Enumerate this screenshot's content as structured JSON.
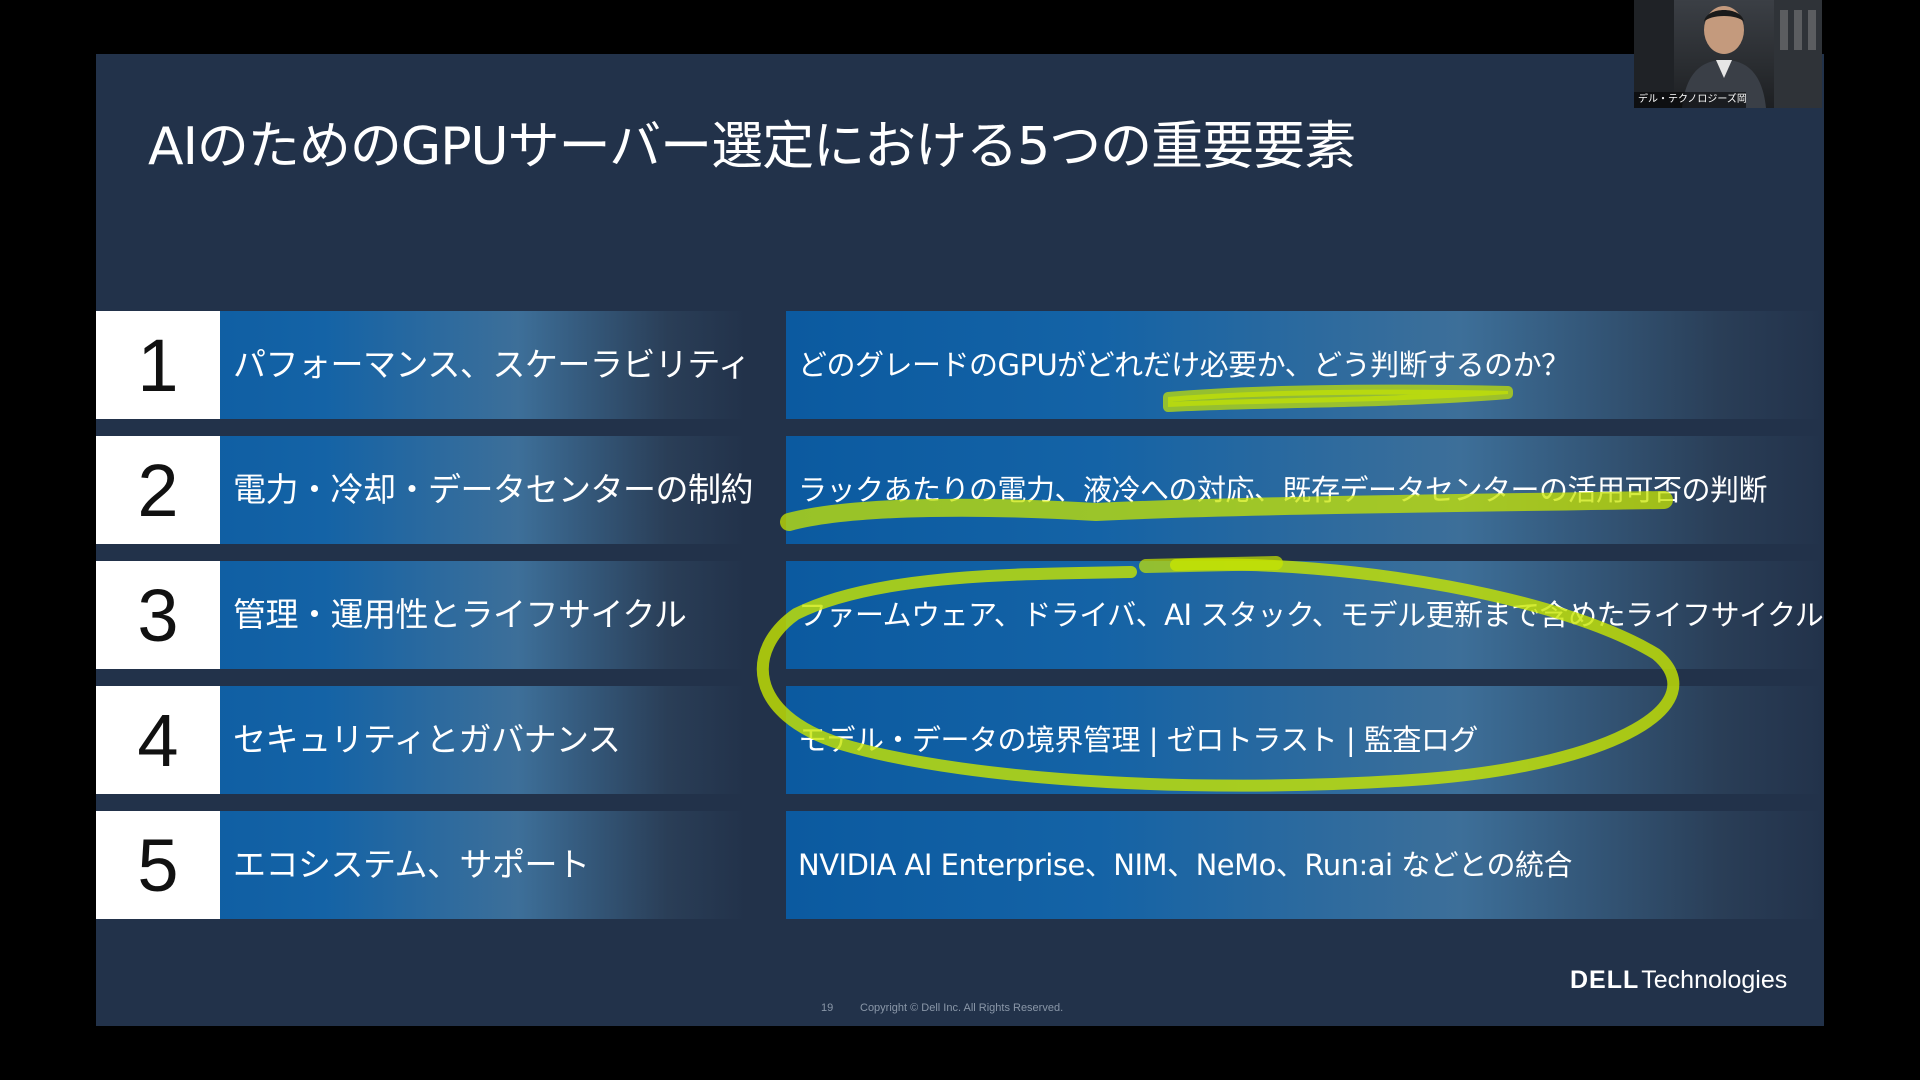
{
  "slide": {
    "title": "AIのためのGPUサーバー選定における5つの重要要素",
    "rows": [
      {
        "number": "1",
        "label": "パフォーマンス、スケーラビリティ",
        "description": "どのグレードのGPUがどれだけ必要か、どう判断するのか？"
      },
      {
        "number": "2",
        "label": "電力・冷却・データセンターの制約",
        "description": "ラックあたりの電力、液冷への対応、既存データセンターの活用可否の判断"
      },
      {
        "number": "3",
        "label": "管理・運用性とライフサイクル",
        "description": "ファームウェア、ドライバ、AI スタック、モデル更新まで含めたライフサイクル"
      },
      {
        "number": "4",
        "label": "セキュリティとガバナンス",
        "description": "モデル・データの境界管理 | ゼロトラスト | 監査ログ"
      },
      {
        "number": "5",
        "label": "エコシステム、サポート",
        "description": "NVIDIA AI Enterprise、NIM、NeMo、Run:ai などとの統合"
      }
    ],
    "footer": {
      "page_number": "19",
      "copyright": "Copyright © Dell Inc. All Rights Reserved."
    },
    "brand": {
      "dell": "DELL",
      "technologies": "Technologies"
    },
    "annotation_color": "#c8e600"
  },
  "webcam": {
    "participant_name": "デル・テクノロジーズ岡..."
  }
}
